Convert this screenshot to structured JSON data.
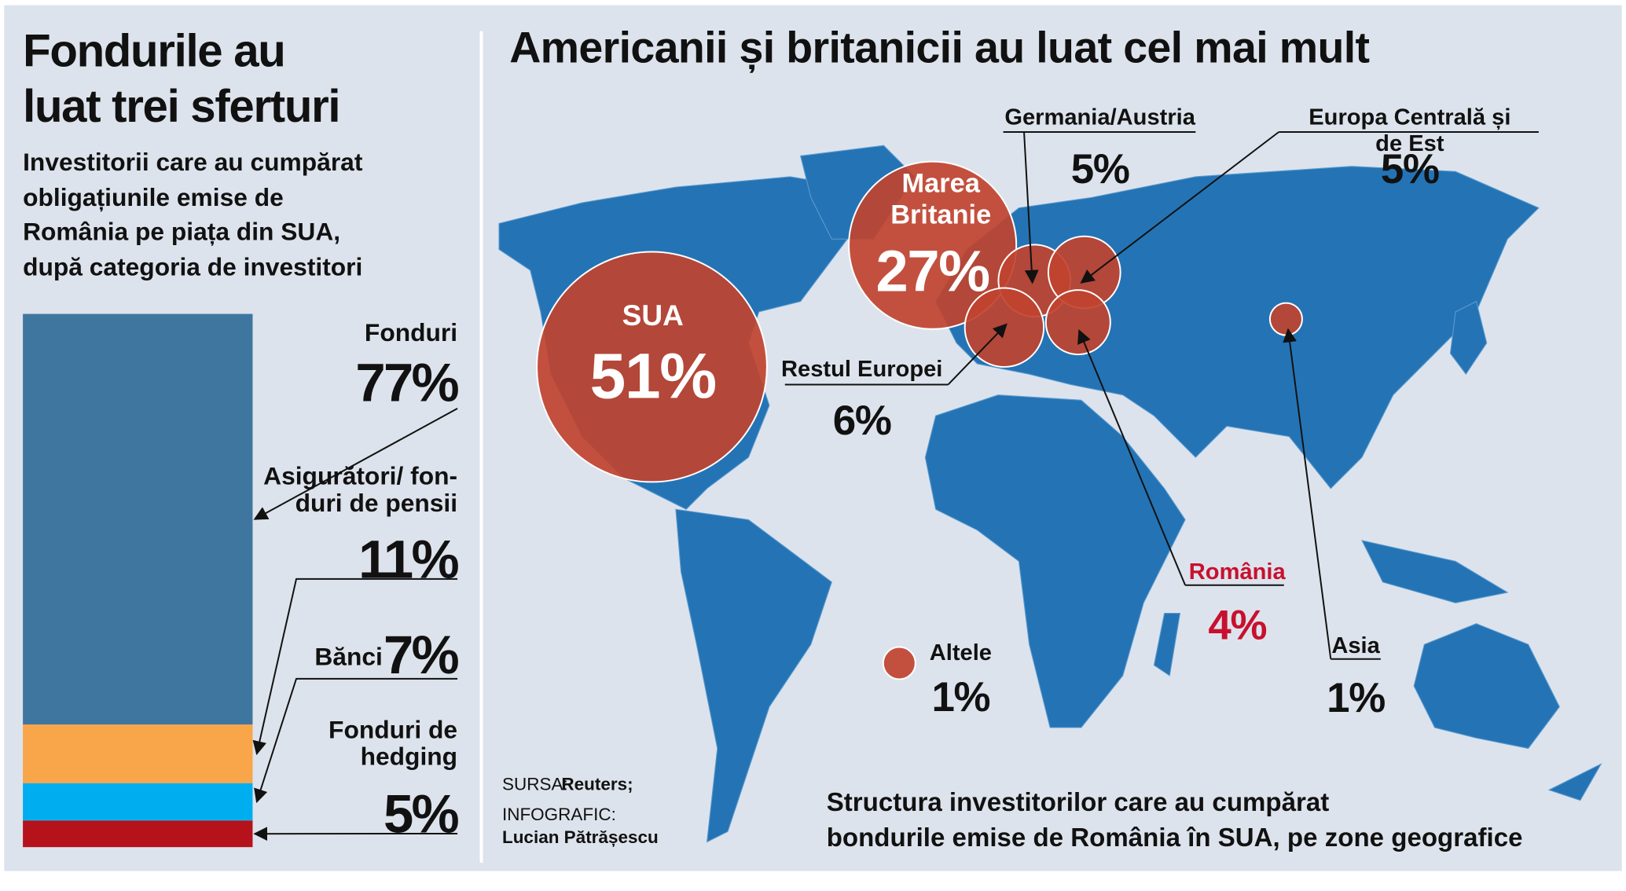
{
  "chart_data": [
    {
      "type": "bar",
      "stacked": true,
      "title": "Fondurile au\nluat trei sferturi",
      "subtitle": "Investitorii care au cumpărat\nobligațiunile emise de\nRomânia pe piața din SUA,\ndupă categoria de investitori",
      "categories": [
        "Fonduri",
        "Asigurători/ fon-\nduri de pensii",
        "Bănci",
        "Fonduri de\nhedging"
      ],
      "values": [
        77,
        11,
        7,
        5
      ],
      "value_labels": [
        "77%",
        "11%",
        "7%",
        "5%"
      ],
      "colors": [
        "#3f76a0",
        "#f9a54a",
        "#00aeef",
        "#b5121b"
      ],
      "ylim": [
        0,
        100
      ]
    },
    {
      "type": "bubble",
      "title": "Americanii și britanicii au luat cel mai mult",
      "categories": [
        "SUA",
        "Marea\nBritanie",
        "Germania/Austria",
        "Europa Centrală și de Est",
        "Restul Europei",
        "România",
        "Asia",
        "Altele"
      ],
      "values": [
        51,
        27,
        5,
        5,
        6,
        4,
        1,
        1
      ],
      "value_labels": [
        "51%",
        "27%",
        "5%",
        "5%",
        "6%",
        "4%",
        "1%",
        "1%"
      ],
      "color": "#c0432f",
      "label_colors": [
        "#ffffff",
        "#ffffff",
        "#111111",
        "#111111",
        "#111111",
        "#c8102e",
        "#111111",
        "#111111"
      ],
      "caption": "Structura investitorilor care au cumpărat\nbondurile emise de România în SUA, pe zone geografice",
      "source_label": "SURSA:",
      "source": "Reuters;",
      "credit_label": "INFOGRAFIC:",
      "credit": "Lucian Pătrășescu"
    }
  ]
}
